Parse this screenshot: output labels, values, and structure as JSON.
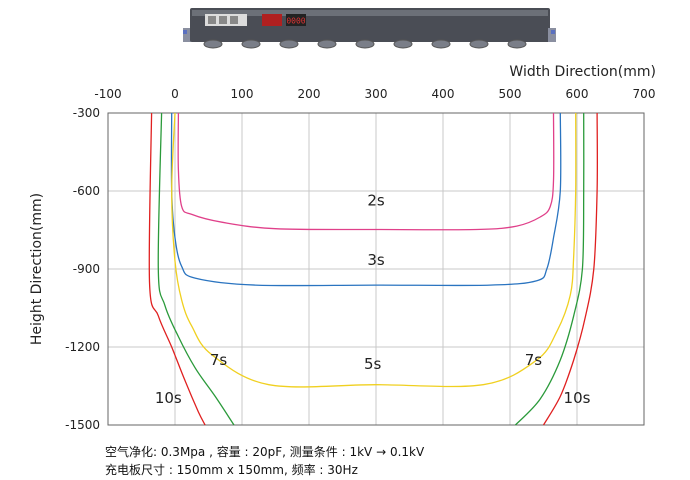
{
  "chart_data": {
    "type": "line",
    "xlabel": "Width Direction(mm)",
    "ylabel": "Height Direction(mm)",
    "xlim": [
      -100,
      700
    ],
    "ylim": [
      -1500,
      -300
    ],
    "x_ticks": [
      -100,
      0,
      100,
      200,
      300,
      400,
      500,
      600,
      700
    ],
    "y_ticks": [
      -300,
      -600,
      -900,
      -1200,
      -1500
    ],
    "grid": true,
    "series": [
      {
        "color": "#e0408a",
        "points": [
          [
            5,
            -300
          ],
          [
            5,
            -520
          ],
          [
            10,
            -660
          ],
          [
            25,
            -690
          ],
          [
            70,
            -720
          ],
          [
            150,
            -745
          ],
          [
            300,
            -748
          ],
          [
            450,
            -748
          ],
          [
            510,
            -735
          ],
          [
            545,
            -700
          ],
          [
            560,
            -660
          ],
          [
            565,
            -560
          ],
          [
            565,
            -300
          ]
        ]
      },
      {
        "color": "#2a74c0",
        "points": [
          [
            -5,
            -300
          ],
          [
            -5,
            -600
          ],
          [
            0,
            -780
          ],
          [
            10,
            -890
          ],
          [
            30,
            -935
          ],
          [
            120,
            -962
          ],
          [
            300,
            -962
          ],
          [
            470,
            -962
          ],
          [
            540,
            -945
          ],
          [
            555,
            -900
          ],
          [
            565,
            -780
          ],
          [
            575,
            -600
          ],
          [
            575,
            -300
          ]
        ]
      },
      {
        "color": "#f0d020",
        "points": [
          [
            0,
            -300
          ],
          [
            -5,
            -600
          ],
          [
            0,
            -870
          ],
          [
            10,
            -1020
          ],
          [
            25,
            -1120
          ],
          [
            55,
            -1230
          ],
          [
            140,
            -1345
          ],
          [
            300,
            -1345
          ],
          [
            460,
            -1345
          ],
          [
            540,
            -1250
          ],
          [
            570,
            -1140
          ],
          [
            590,
            -1000
          ],
          [
            595,
            -850
          ],
          [
            598,
            -600
          ],
          [
            598,
            -300
          ]
        ]
      },
      {
        "color": "#2a9a3a",
        "points": [
          [
            -20,
            -300
          ],
          [
            -25,
            -900
          ],
          [
            -15,
            -1040
          ],
          [
            5,
            -1160
          ],
          [
            30,
            -1280
          ],
          [
            60,
            -1390
          ],
          [
            88,
            -1500
          ]
        ]
      },
      {
        "color": "#2a9a3a",
        "points": [
          [
            508,
            -1500
          ],
          [
            545,
            -1400
          ],
          [
            575,
            -1250
          ],
          [
            595,
            -1080
          ],
          [
            608,
            -900
          ],
          [
            610,
            -600
          ],
          [
            610,
            -300
          ]
        ]
      },
      {
        "color": "#e02020",
        "points": [
          [
            -35,
            -300
          ],
          [
            -38,
            -950
          ],
          [
            -25,
            -1080
          ],
          [
            -5,
            -1200
          ],
          [
            15,
            -1330
          ],
          [
            35,
            -1450
          ],
          [
            45,
            -1500
          ]
        ]
      },
      {
        "color": "#e02020",
        "points": [
          [
            550,
            -1500
          ],
          [
            575,
            -1390
          ],
          [
            595,
            -1250
          ],
          [
            612,
            -1090
          ],
          [
            625,
            -900
          ],
          [
            630,
            -600
          ],
          [
            630,
            -300
          ]
        ]
      }
    ],
    "annotations": [
      {
        "text": "2s",
        "x": 300,
        "y": -655
      },
      {
        "text": "3s",
        "x": 300,
        "y": -885
      },
      {
        "text": "5s",
        "x": 295,
        "y": -1285
      },
      {
        "text": "7s",
        "x": 65,
        "y": -1270
      },
      {
        "text": "7s",
        "x": 535,
        "y": -1270
      },
      {
        "text": "10s",
        "x": -10,
        "y": -1415
      },
      {
        "text": "10s",
        "x": 600,
        "y": -1415
      }
    ]
  },
  "device": {
    "display_value": "0000"
  },
  "footnotes": [
    "空气净化: 0.3Mpa , 容量 : 20pF,  测量条件 : 1kV → 0.1kV",
    "充电板尺寸 : 150mm x 150mm, 频率 : 30Hz"
  ]
}
